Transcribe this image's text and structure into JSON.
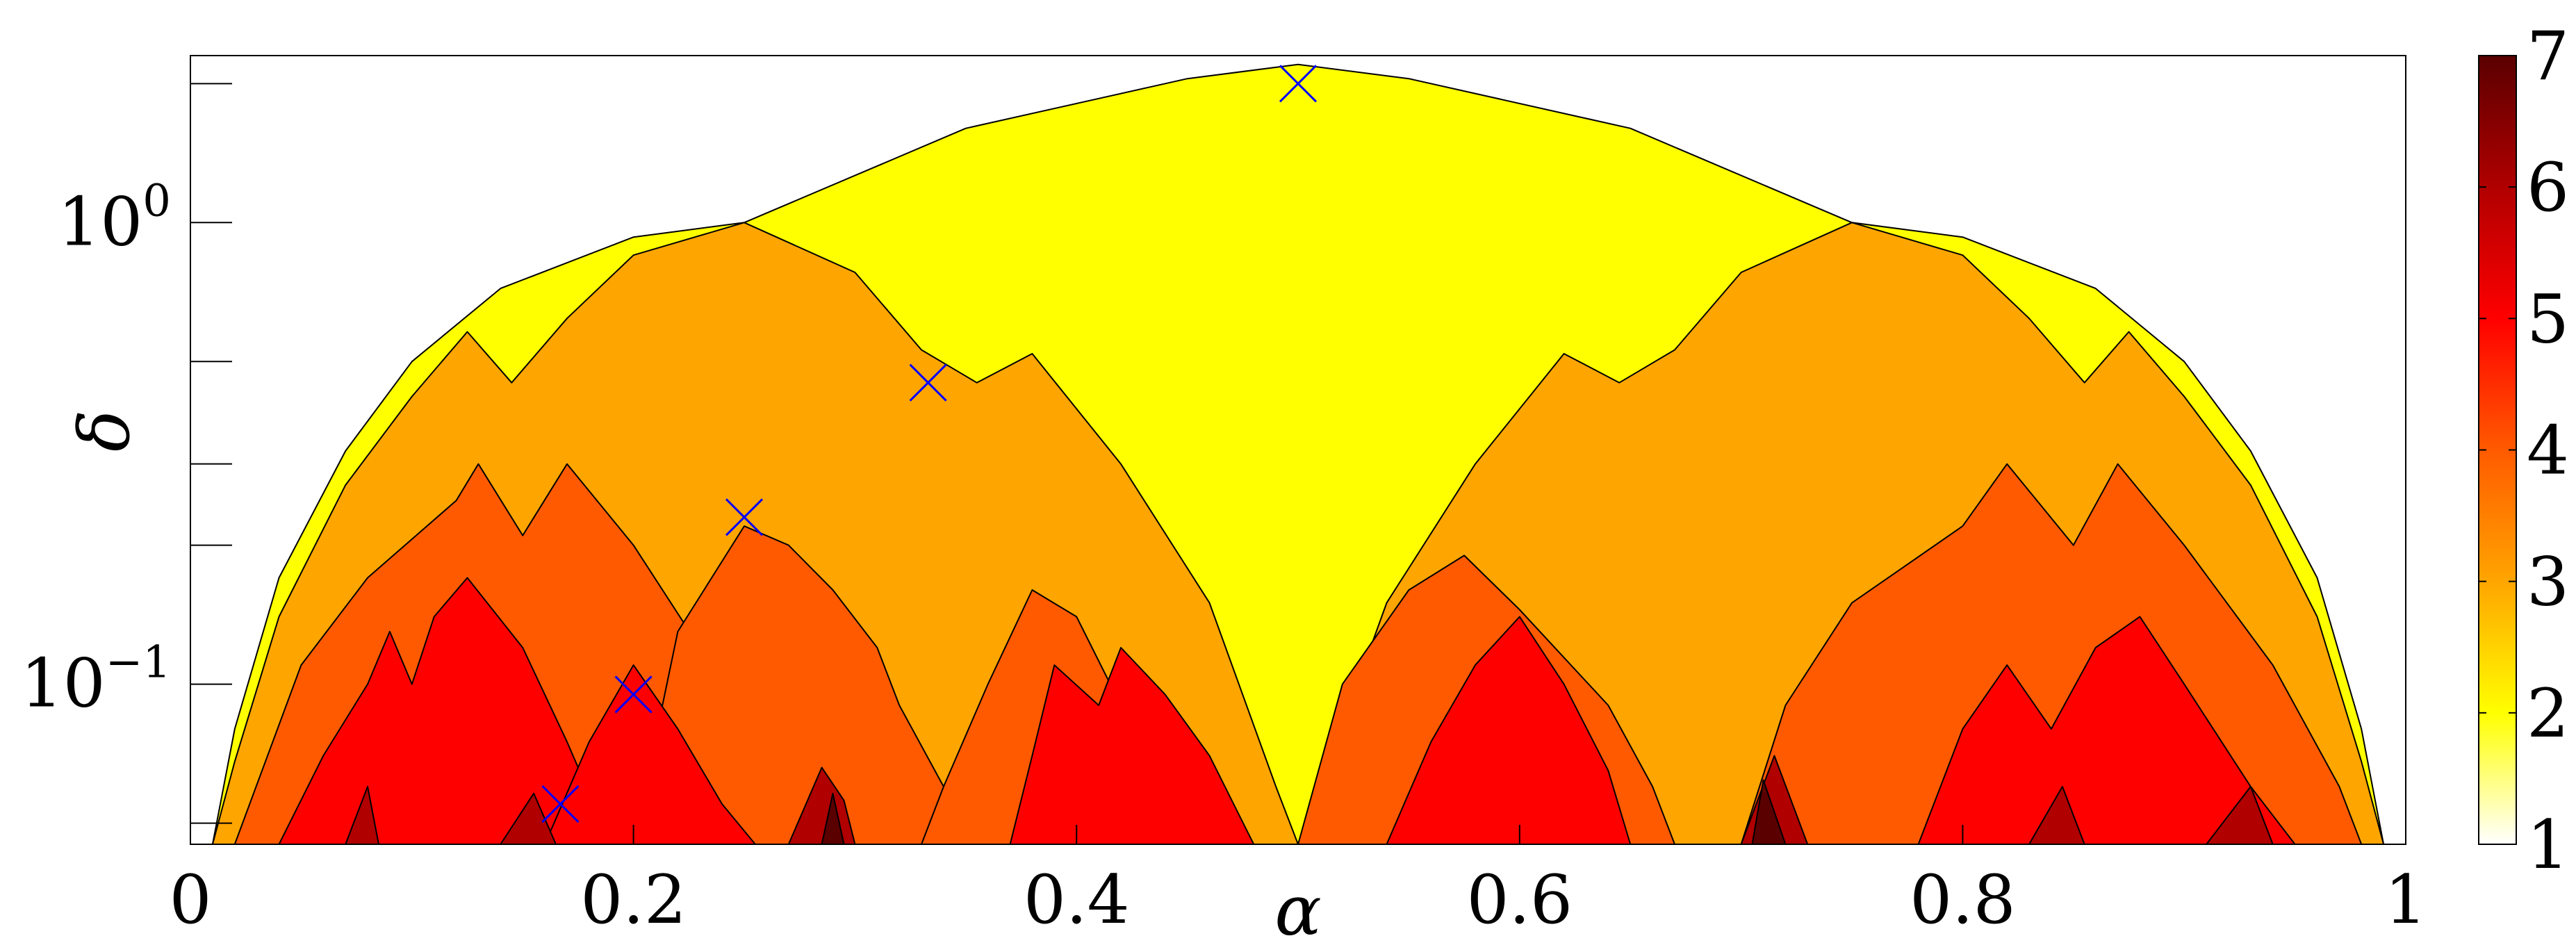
{
  "chart_data": {
    "type": "heatmap",
    "title": "",
    "xlabel": "α",
    "ylabel": "δ",
    "xlim": [
      0,
      1
    ],
    "ylim": [
      0.045,
      2.3
    ],
    "yscale": "log",
    "grid": false,
    "colorbar": {
      "placement": "right",
      "range": [
        1,
        7
      ],
      "tick_labels": [
        "1",
        "2",
        "3",
        "4",
        "5",
        "6",
        "7"
      ],
      "colors": [
        "#ffffff",
        "#ffff00",
        "#ffa500",
        "#ff5a00",
        "#ff0000",
        "#b00000",
        "#5a0000"
      ]
    },
    "xticks": [
      {
        "value": 0,
        "label": "0"
      },
      {
        "value": 0.2,
        "label": "0.2"
      },
      {
        "value": 0.4,
        "label": "0.4"
      },
      {
        "value": 0.6,
        "label": "0.6"
      },
      {
        "value": 0.8,
        "label": "0.8"
      },
      {
        "value": 1,
        "label": "1"
      }
    ],
    "yticks": [
      {
        "value": 0.1,
        "base": "10",
        "exp": "−1"
      },
      {
        "value": 1,
        "base": "10",
        "exp": "0"
      }
    ],
    "yminor_ticks": [
      0.05,
      0.2,
      0.3,
      0.5,
      2
    ],
    "regions": [
      {
        "level": 2,
        "color": "#ffff00",
        "profile": [
          [
            0,
            0.045
          ],
          [
            0.01,
            0.045
          ],
          [
            0.02,
            0.08
          ],
          [
            0.04,
            0.17
          ],
          [
            0.07,
            0.32
          ],
          [
            0.1,
            0.5
          ],
          [
            0.14,
            0.72
          ],
          [
            0.2,
            0.93
          ],
          [
            0.25,
            1.0
          ],
          [
            0.35,
            1.6
          ],
          [
            0.45,
            2.05
          ],
          [
            0.5,
            2.2
          ],
          [
            0.55,
            2.05
          ],
          [
            0.65,
            1.6
          ],
          [
            0.75,
            1.0
          ],
          [
            0.8,
            0.93
          ],
          [
            0.86,
            0.72
          ],
          [
            0.9,
            0.5
          ],
          [
            0.93,
            0.32
          ],
          [
            0.96,
            0.17
          ],
          [
            0.98,
            0.08
          ],
          [
            0.99,
            0.045
          ],
          [
            1,
            0.045
          ]
        ]
      },
      {
        "level": 3,
        "color": "#ffa500",
        "profile": [
          [
            0.01,
            0.045
          ],
          [
            0.02,
            0.068
          ],
          [
            0.04,
            0.14
          ],
          [
            0.07,
            0.27
          ],
          [
            0.1,
            0.42
          ],
          [
            0.125,
            0.58
          ],
          [
            0.145,
            0.45
          ],
          [
            0.17,
            0.62
          ],
          [
            0.2,
            0.85
          ],
          [
            0.25,
            1.0
          ],
          [
            0.3,
            0.78
          ],
          [
            0.33,
            0.53
          ],
          [
            0.355,
            0.45
          ],
          [
            0.38,
            0.52
          ],
          [
            0.42,
            0.3
          ],
          [
            0.46,
            0.15
          ],
          [
            0.49,
            0.06
          ],
          [
            0.5,
            0.045
          ]
        ]
      },
      {
        "level": 3,
        "color": "#ffa500",
        "profile": [
          [
            0.5,
            0.045
          ],
          [
            0.51,
            0.06
          ],
          [
            0.54,
            0.15
          ],
          [
            0.58,
            0.3
          ],
          [
            0.62,
            0.52
          ],
          [
            0.645,
            0.45
          ],
          [
            0.67,
            0.53
          ],
          [
            0.7,
            0.78
          ],
          [
            0.75,
            1.0
          ],
          [
            0.8,
            0.85
          ],
          [
            0.83,
            0.62
          ],
          [
            0.855,
            0.45
          ],
          [
            0.875,
            0.58
          ],
          [
            0.9,
            0.42
          ],
          [
            0.93,
            0.27
          ],
          [
            0.96,
            0.14
          ],
          [
            0.98,
            0.068
          ],
          [
            0.99,
            0.045
          ]
        ]
      },
      {
        "level": 4,
        "color": "#ff5a00",
        "profile": [
          [
            0.02,
            0.045
          ],
          [
            0.05,
            0.11
          ],
          [
            0.08,
            0.17
          ],
          [
            0.12,
            0.25
          ],
          [
            0.13,
            0.3
          ],
          [
            0.15,
            0.21
          ],
          [
            0.17,
            0.3
          ],
          [
            0.2,
            0.2
          ],
          [
            0.23,
            0.12
          ],
          [
            0.25,
            0.082
          ],
          [
            0.28,
            0.055
          ],
          [
            0.3,
            0.045
          ]
        ]
      },
      {
        "level": 4,
        "color": "#ff5a00",
        "profile": [
          [
            0.2,
            0.045
          ],
          [
            0.22,
            0.13
          ],
          [
            0.25,
            0.22
          ],
          [
            0.27,
            0.2
          ],
          [
            0.29,
            0.16
          ],
          [
            0.31,
            0.12
          ],
          [
            0.32,
            0.09
          ],
          [
            0.34,
            0.06
          ],
          [
            0.35,
            0.045
          ]
        ]
      },
      {
        "level": 4,
        "color": "#ff5a00",
        "profile": [
          [
            0.5,
            0.045
          ],
          [
            0.52,
            0.1
          ],
          [
            0.55,
            0.16
          ],
          [
            0.575,
            0.19
          ],
          [
            0.6,
            0.145
          ],
          [
            0.64,
            0.09
          ],
          [
            0.66,
            0.06
          ],
          [
            0.67,
            0.045
          ]
        ]
      },
      {
        "level": 4,
        "color": "#ff5a00",
        "profile": [
          [
            0.33,
            0.045
          ],
          [
            0.34,
            0.06
          ],
          [
            0.36,
            0.1
          ],
          [
            0.38,
            0.16
          ],
          [
            0.4,
            0.14
          ],
          [
            0.42,
            0.09
          ],
          [
            0.44,
            0.06
          ],
          [
            0.46,
            0.045
          ]
        ]
      },
      {
        "level": 4,
        "color": "#ff5a00",
        "profile": [
          [
            0.7,
            0.045
          ],
          [
            0.72,
            0.09
          ],
          [
            0.75,
            0.15
          ],
          [
            0.8,
            0.22
          ],
          [
            0.82,
            0.3
          ],
          [
            0.85,
            0.2
          ],
          [
            0.87,
            0.3
          ],
          [
            0.9,
            0.2
          ],
          [
            0.94,
            0.11
          ],
          [
            0.97,
            0.06
          ],
          [
            0.98,
            0.045
          ]
        ]
      },
      {
        "level": 5,
        "color": "#ff0000",
        "profile": [
          [
            0.04,
            0.045
          ],
          [
            0.06,
            0.07
          ],
          [
            0.08,
            0.1
          ],
          [
            0.09,
            0.13
          ],
          [
            0.1,
            0.1
          ],
          [
            0.11,
            0.14
          ],
          [
            0.125,
            0.17
          ],
          [
            0.15,
            0.12
          ],
          [
            0.17,
            0.075
          ],
          [
            0.19,
            0.045
          ]
        ]
      },
      {
        "level": 5,
        "color": "#ff0000",
        "profile": [
          [
            0.16,
            0.045
          ],
          [
            0.18,
            0.075
          ],
          [
            0.2,
            0.11
          ],
          [
            0.22,
            0.08
          ],
          [
            0.24,
            0.055
          ],
          [
            0.255,
            0.045
          ]
        ]
      },
      {
        "level": 5,
        "color": "#ff0000",
        "profile": [
          [
            0.37,
            0.045
          ],
          [
            0.38,
            0.07
          ],
          [
            0.39,
            0.11
          ],
          [
            0.41,
            0.09
          ],
          [
            0.42,
            0.12
          ],
          [
            0.44,
            0.095
          ],
          [
            0.46,
            0.07
          ],
          [
            0.48,
            0.045
          ]
        ]
      },
      {
        "level": 5,
        "color": "#ff0000",
        "profile": [
          [
            0.54,
            0.045
          ],
          [
            0.56,
            0.075
          ],
          [
            0.58,
            0.11
          ],
          [
            0.6,
            0.14
          ],
          [
            0.62,
            0.1
          ],
          [
            0.64,
            0.065
          ],
          [
            0.65,
            0.045
          ]
        ]
      },
      {
        "level": 5,
        "color": "#ff0000",
        "profile": [
          [
            0.78,
            0.045
          ],
          [
            0.8,
            0.08
          ],
          [
            0.82,
            0.11
          ],
          [
            0.84,
            0.08
          ],
          [
            0.86,
            0.12
          ],
          [
            0.88,
            0.14
          ],
          [
            0.9,
            0.1
          ],
          [
            0.93,
            0.06
          ],
          [
            0.95,
            0.045
          ]
        ]
      },
      {
        "level": 6,
        "color": "#b00000",
        "profile": [
          [
            0.07,
            0.045
          ],
          [
            0.08,
            0.06
          ],
          [
            0.085,
            0.045
          ]
        ]
      },
      {
        "level": 6,
        "color": "#b00000",
        "profile": [
          [
            0.14,
            0.045
          ],
          [
            0.155,
            0.058
          ],
          [
            0.165,
            0.045
          ]
        ]
      },
      {
        "level": 6,
        "color": "#b00000",
        "profile": [
          [
            0.27,
            0.045
          ],
          [
            0.285,
            0.066
          ],
          [
            0.295,
            0.056
          ],
          [
            0.3,
            0.045
          ]
        ]
      },
      {
        "level": 6,
        "color": "#b00000",
        "profile": [
          [
            0.7,
            0.045
          ],
          [
            0.715,
            0.07
          ],
          [
            0.73,
            0.045
          ]
        ]
      },
      {
        "level": 6,
        "color": "#b00000",
        "profile": [
          [
            0.83,
            0.045
          ],
          [
            0.845,
            0.06
          ],
          [
            0.855,
            0.045
          ]
        ]
      },
      {
        "level": 6,
        "color": "#b00000",
        "profile": [
          [
            0.91,
            0.045
          ],
          [
            0.93,
            0.06
          ],
          [
            0.94,
            0.045
          ]
        ]
      },
      {
        "level": 7,
        "color": "#5a0000",
        "profile": [
          [
            0.285,
            0.045
          ],
          [
            0.29,
            0.058
          ],
          [
            0.295,
            0.045
          ]
        ]
      },
      {
        "level": 7,
        "color": "#5a0000",
        "profile": [
          [
            0.705,
            0.045
          ],
          [
            0.71,
            0.062
          ],
          [
            0.72,
            0.045
          ]
        ]
      }
    ],
    "markers": [
      {
        "x": 0.5,
        "y": 2.0,
        "symbol": "x",
        "color": "#0000ff"
      },
      {
        "x": 0.333,
        "y": 0.45,
        "symbol": "x",
        "color": "#0000ff"
      },
      {
        "x": 0.25,
        "y": 0.23,
        "symbol": "x",
        "color": "#0000ff"
      },
      {
        "x": 0.2,
        "y": 0.095,
        "symbol": "x",
        "color": "#0000ff"
      },
      {
        "x": 0.167,
        "y": 0.055,
        "symbol": "x",
        "color": "#0000ff"
      }
    ]
  }
}
